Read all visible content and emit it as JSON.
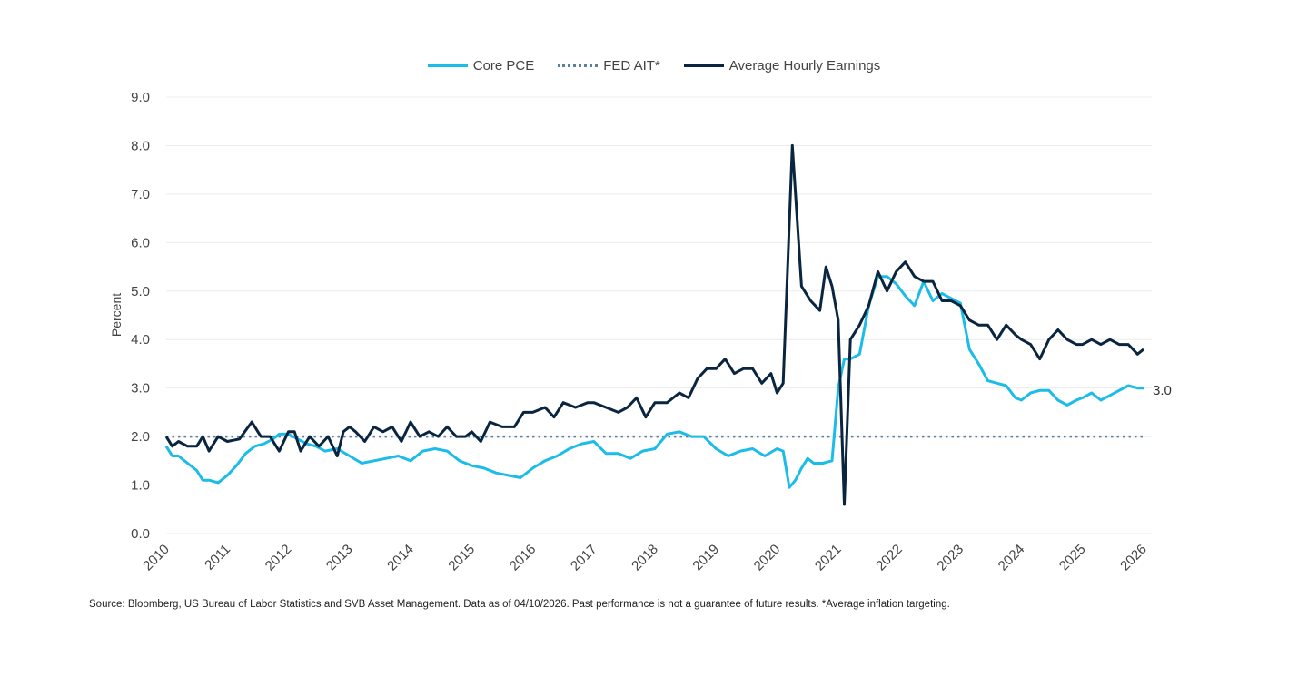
{
  "chart_data": {
    "type": "line",
    "xlabel": "",
    "ylabel": "Percent",
    "ylim": [
      0,
      9
    ],
    "yticks": [
      "0.0",
      "1.0",
      "2.0",
      "3.0",
      "4.0",
      "5.0",
      "6.0",
      "7.0",
      "8.0",
      "9.0"
    ],
    "xlim": [
      2010,
      2026
    ],
    "xticks": [
      "2010",
      "2011",
      "2012",
      "2013",
      "2014",
      "2015",
      "2016",
      "2017",
      "2018",
      "2019",
      "2020",
      "2021",
      "2022",
      "2023",
      "2024",
      "2025",
      "2026"
    ],
    "grid": "horizontal",
    "legend_position": "top-center",
    "end_label": "3.0",
    "series": [
      {
        "name": "Core PCE",
        "color": "#1cbce8",
        "style": "solid",
        "x": [
          2010.0,
          2010.1,
          2010.2,
          2010.35,
          2010.5,
          2010.6,
          2010.7,
          2010.85,
          2011.0,
          2011.15,
          2011.3,
          2011.45,
          2011.6,
          2011.75,
          2011.85,
          2012.0,
          2012.15,
          2012.3,
          2012.45,
          2012.6,
          2012.8,
          2013.0,
          2013.2,
          2013.4,
          2013.6,
          2013.8,
          2014.0,
          2014.2,
          2014.4,
          2014.6,
          2014.8,
          2015.0,
          2015.2,
          2015.4,
          2015.6,
          2015.8,
          2016.0,
          2016.2,
          2016.4,
          2016.6,
          2016.8,
          2017.0,
          2017.2,
          2017.4,
          2017.6,
          2017.8,
          2018.0,
          2018.2,
          2018.4,
          2018.6,
          2018.8,
          2019.0,
          2019.2,
          2019.4,
          2019.6,
          2019.8,
          2020.0,
          2020.1,
          2020.2,
          2020.3,
          2020.4,
          2020.5,
          2020.6,
          2020.75,
          2020.9,
          2021.0,
          2021.1,
          2021.2,
          2021.35,
          2021.5,
          2021.65,
          2021.8,
          2021.95,
          2022.1,
          2022.25,
          2022.4,
          2022.55,
          2022.7,
          2022.85,
          2023.0,
          2023.15,
          2023.3,
          2023.45,
          2023.6,
          2023.75,
          2023.9,
          2024.0,
          2024.15,
          2024.3,
          2024.45,
          2024.6,
          2024.75,
          2024.9,
          2025.0,
          2025.15,
          2025.3,
          2025.45,
          2025.6,
          2025.75,
          2025.9,
          2026.0
        ],
        "values": [
          1.8,
          1.6,
          1.6,
          1.45,
          1.3,
          1.1,
          1.1,
          1.05,
          1.2,
          1.4,
          1.65,
          1.8,
          1.85,
          1.95,
          2.05,
          2.05,
          1.95,
          1.85,
          1.8,
          1.7,
          1.75,
          1.6,
          1.45,
          1.5,
          1.55,
          1.6,
          1.5,
          1.7,
          1.75,
          1.7,
          1.5,
          1.4,
          1.35,
          1.25,
          1.2,
          1.15,
          1.35,
          1.5,
          1.6,
          1.75,
          1.85,
          1.9,
          1.65,
          1.65,
          1.55,
          1.7,
          1.75,
          2.05,
          2.1,
          2.0,
          2.0,
          1.75,
          1.6,
          1.7,
          1.75,
          1.6,
          1.75,
          1.7,
          0.95,
          1.1,
          1.35,
          1.55,
          1.45,
          1.45,
          1.5,
          3.0,
          3.6,
          3.6,
          3.7,
          4.7,
          5.3,
          5.3,
          5.15,
          4.9,
          4.7,
          5.2,
          4.8,
          4.95,
          4.85,
          4.75,
          3.8,
          3.5,
          3.15,
          3.1,
          3.05,
          2.8,
          2.75,
          2.9,
          2.95,
          2.95,
          2.75,
          2.65,
          2.75,
          2.8,
          2.9,
          2.75,
          2.85,
          2.95,
          3.05,
          3.0,
          3.0
        ]
      },
      {
        "name": "FED AIT*",
        "color": "#5a7fa0",
        "style": "dotted",
        "x": [
          2010.0,
          2026.0
        ],
        "values": [
          2.0,
          2.0
        ]
      },
      {
        "name": "Average Hourly Earnings",
        "color": "#0a2540",
        "style": "solid",
        "x": [
          2010.0,
          2010.1,
          2010.2,
          2010.35,
          2010.5,
          2010.6,
          2010.7,
          2010.85,
          2011.0,
          2011.2,
          2011.4,
          2011.55,
          2011.7,
          2011.85,
          2012.0,
          2012.1,
          2012.2,
          2012.35,
          2012.5,
          2012.65,
          2012.8,
          2012.9,
          2013.0,
          2013.1,
          2013.25,
          2013.4,
          2013.55,
          2013.7,
          2013.85,
          2014.0,
          2014.15,
          2014.3,
          2014.45,
          2014.6,
          2014.75,
          2014.9,
          2015.0,
          2015.15,
          2015.3,
          2015.5,
          2015.7,
          2015.85,
          2016.0,
          2016.2,
          2016.35,
          2016.5,
          2016.7,
          2016.9,
          2017.0,
          2017.2,
          2017.4,
          2017.55,
          2017.7,
          2017.85,
          2018.0,
          2018.2,
          2018.4,
          2018.55,
          2018.7,
          2018.85,
          2019.0,
          2019.15,
          2019.3,
          2019.45,
          2019.6,
          2019.75,
          2019.9,
          2020.0,
          2020.1,
          2020.25,
          2020.4,
          2020.55,
          2020.7,
          2020.8,
          2020.9,
          2021.0,
          2021.1,
          2021.2,
          2021.35,
          2021.5,
          2021.65,
          2021.8,
          2021.95,
          2022.1,
          2022.25,
          2022.4,
          2022.55,
          2022.7,
          2022.85,
          2023.0,
          2023.15,
          2023.3,
          2023.45,
          2023.6,
          2023.75,
          2023.9,
          2024.0,
          2024.15,
          2024.3,
          2024.45,
          2024.6,
          2024.75,
          2024.9,
          2025.0,
          2025.15,
          2025.3,
          2025.45,
          2025.6,
          2025.75,
          2025.9,
          2026.0
        ],
        "values": [
          2.0,
          1.8,
          1.9,
          1.8,
          1.8,
          2.0,
          1.7,
          2.0,
          1.9,
          1.95,
          2.3,
          2.0,
          2.0,
          1.7,
          2.1,
          2.1,
          1.7,
          2.0,
          1.8,
          2.0,
          1.6,
          2.1,
          2.2,
          2.1,
          1.9,
          2.2,
          2.1,
          2.2,
          1.9,
          2.3,
          2.0,
          2.1,
          2.0,
          2.2,
          2.0,
          2.0,
          2.1,
          1.9,
          2.3,
          2.2,
          2.2,
          2.5,
          2.5,
          2.6,
          2.4,
          2.7,
          2.6,
          2.7,
          2.7,
          2.6,
          2.5,
          2.6,
          2.8,
          2.4,
          2.7,
          2.7,
          2.9,
          2.8,
          3.2,
          3.4,
          3.4,
          3.6,
          3.3,
          3.4,
          3.4,
          3.1,
          3.3,
          2.9,
          3.1,
          8.0,
          5.1,
          4.8,
          4.6,
          5.5,
          5.1,
          4.4,
          0.6,
          4.0,
          4.3,
          4.7,
          5.4,
          5.0,
          5.4,
          5.6,
          5.3,
          5.2,
          5.2,
          4.8,
          4.8,
          4.7,
          4.4,
          4.3,
          4.3,
          4.0,
          4.3,
          4.1,
          4.0,
          3.9,
          3.6,
          4.0,
          4.2,
          4.0,
          3.9,
          3.9,
          4.0,
          3.9,
          4.0,
          3.9,
          3.9,
          3.7,
          3.8
        ]
      }
    ]
  },
  "source_note": "Source: Bloomberg, US Bureau of Labor Statistics and SVB Asset Management. Data as of 04/10/2026. Past performance is not a guarantee of future results. *Average inflation targeting."
}
